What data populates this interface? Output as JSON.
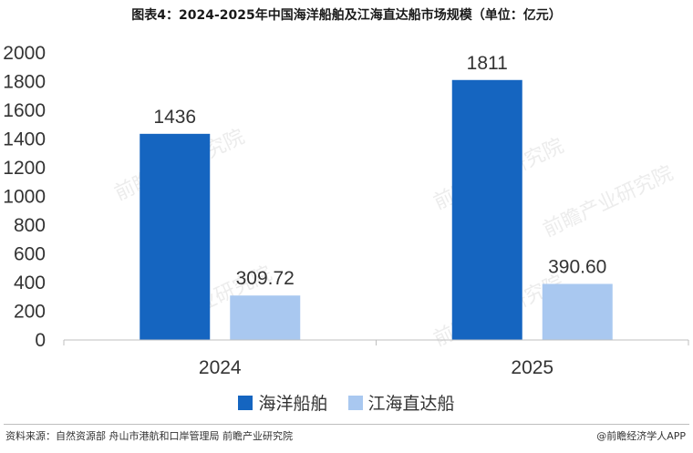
{
  "title": "图表4：2024-2025年中国海洋船舶及江海直达船市场规模（单位：亿元）",
  "chart_data": {
    "type": "bar",
    "categories": [
      "2024",
      "2025"
    ],
    "series": [
      {
        "name": "海洋船舶",
        "values": [
          1436,
          1811
        ],
        "labels": [
          "1436",
          "1811"
        ],
        "color": "#1565c0"
      },
      {
        "name": "江海直达船",
        "values": [
          309.72,
          390.6
        ],
        "labels": [
          "309.72",
          "390.60"
        ],
        "color": "#a9c8f0"
      }
    ],
    "ylim": [
      0,
      2000
    ],
    "yticks": [
      "0",
      "200",
      "400",
      "600",
      "800",
      "1000",
      "1200",
      "1400",
      "1600",
      "1800",
      "2000"
    ],
    "legend_position": "bottom"
  },
  "watermark": "前瞻产业研究院",
  "footer": {
    "source": "资料来源：自然资源部 舟山市港航和口岸管理局 前瞻产业研究院",
    "brand": "@前瞻经济学人APP"
  }
}
